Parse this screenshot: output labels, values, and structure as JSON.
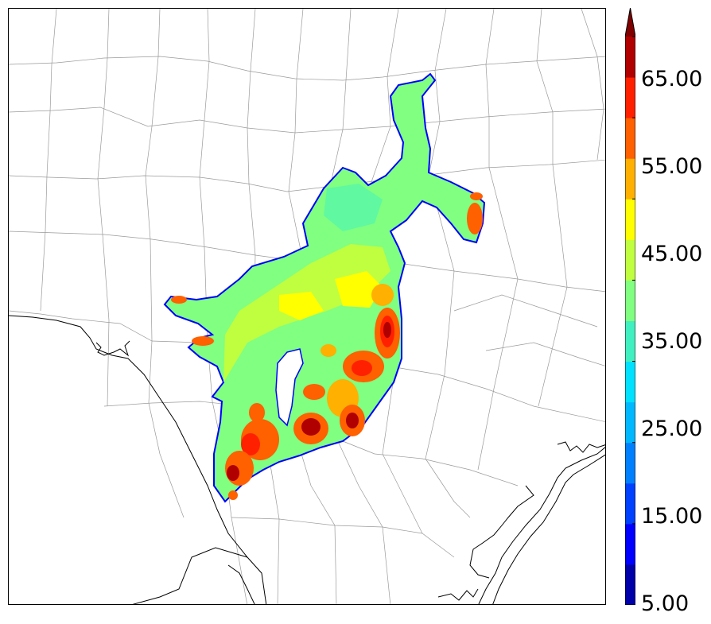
{
  "colorbar": {
    "levels": [
      5,
      10,
      15,
      20,
      25,
      30,
      35,
      40,
      45,
      50,
      55,
      60,
      65,
      70
    ],
    "colors": [
      "#0000a8",
      "#0000ff",
      "#0040ff",
      "#0080ff",
      "#00b8ff",
      "#00e0ff",
      "#40f0c0",
      "#80ff80",
      "#c0ff40",
      "#ffff00",
      "#ffb000",
      "#ff6000",
      "#ff2000",
      "#b00000"
    ],
    "extend_color": "#800000",
    "tick_labels": [
      "5.00",
      "15.00",
      "25.00",
      "35.00",
      "45.00",
      "55.00",
      "65.00"
    ]
  },
  "map": {
    "background": "#ffffff",
    "county_line_color": "#999999",
    "coast_color": "#000000",
    "field_outline_color": "#0000ff"
  }
}
